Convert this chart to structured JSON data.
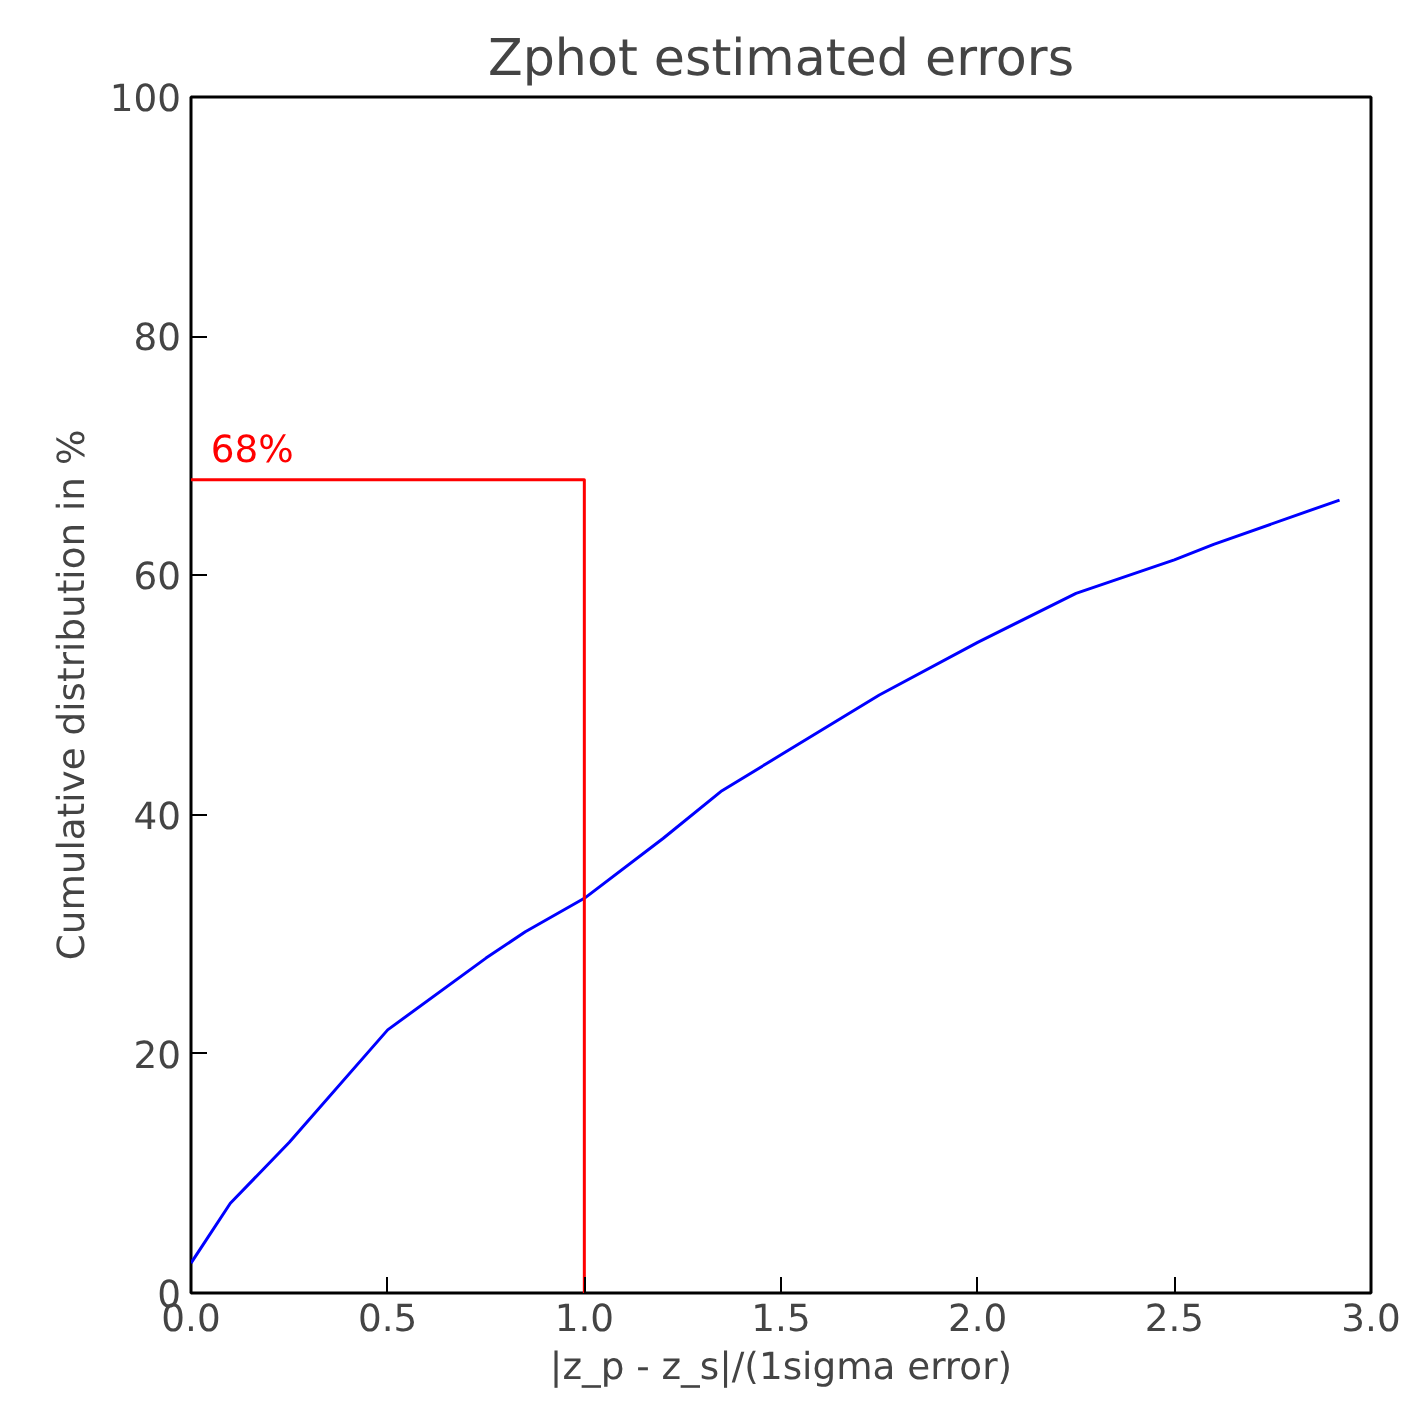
{
  "chart_data": {
    "type": "line",
    "title": "Zphot estimated errors",
    "xlabel": "|z_p - z_s|/(1sigma error)",
    "ylabel": "Cumulative distribution in %",
    "xlim": [
      0,
      3
    ],
    "ylim": [
      0,
      100
    ],
    "xticks": [
      {
        "value": 0,
        "label": "0.0"
      },
      {
        "value": 0.5,
        "label": "0.5"
      },
      {
        "value": 1,
        "label": "1.0"
      },
      {
        "value": 1.5,
        "label": "1.5"
      },
      {
        "value": 2,
        "label": "2.0"
      },
      {
        "value": 2.5,
        "label": "2.5"
      },
      {
        "value": 3,
        "label": "3.0"
      }
    ],
    "yticks": [
      0,
      20,
      40,
      60,
      80,
      100
    ],
    "series": [
      {
        "color": "#0000ff",
        "x": [
          0,
          0.1,
          0.25,
          0.5,
          0.75,
          0.85,
          1.0,
          1.2,
          1.35,
          1.5,
          1.75,
          2.0,
          2.25,
          2.5,
          2.6,
          2.92
        ],
        "values": [
          2.5,
          7.5,
          12.6,
          22,
          28,
          30.2,
          33,
          38,
          42,
          45,
          50,
          54.4,
          58.5,
          61.3,
          62.6,
          66.3
        ]
      },
      {
        "color": "#ff0000",
        "x": [
          0,
          1,
          1
        ],
        "values": [
          68,
          68,
          0
        ]
      }
    ],
    "annotations": [
      {
        "text": "68%",
        "x": 0.05,
        "y": 68
      }
    ]
  }
}
